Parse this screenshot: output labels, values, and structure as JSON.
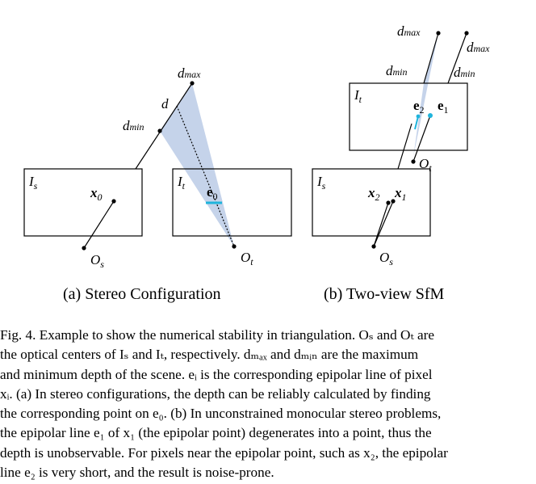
{
  "panel_a": {
    "caption": "(a) Stereo Configuration",
    "labels": {
      "d_max": "d",
      "d_max_sub": "max",
      "d": "d",
      "d_min": "d",
      "d_min_sub": "min",
      "I_s": "I",
      "I_s_sub": "s",
      "I_t": "I",
      "I_t_sub": "t",
      "x_0": "x",
      "x_0_sub": "0",
      "e_0": "e",
      "e_0_sub": "0",
      "O_s": "O",
      "O_s_sub": "s",
      "O_t": "O",
      "O_t_sub": "t"
    }
  },
  "panel_b": {
    "caption": "(b) Two-view SfM",
    "labels": {
      "d_max_1": "d",
      "d_max_1_sub": "max",
      "d_max_2": "d",
      "d_max_2_sub": "max",
      "d_min_1": "d",
      "d_min_1_sub": "min",
      "d_min_2": "d",
      "d_min_2_sub": "min",
      "I_t": "I",
      "I_t_sub": "t",
      "e_2": "e",
      "e_2_sub": "2",
      "e_1": "e",
      "e_1_sub": "1",
      "O_t": "O",
      "O_t_sub": "t",
      "I_s": "I",
      "I_s_sub": "s",
      "x_2": "x",
      "x_2_sub": "2",
      "x_1": "x",
      "x_1_sub": "1",
      "O_s": "O",
      "O_s_sub": "s"
    }
  },
  "caption_lines": [
    "Fig. 4.     Example to show the numerical stability in triangulation. Oₛ and Oₜ are",
    "the optical centers of Iₛ and Iₜ, respectively. dₘₐₓ and dₘᵢₙ are the maximum",
    "and minimum depth of the scene. eᵢ is the corresponding epipolar line of pixel",
    "xᵢ. (a) In stereo configurations, the depth can be reliably calculated by finding",
    "the corresponding point on e₀. (b) In unconstrained monocular stereo problems,",
    "the epipolar line e₁ of x₁ (the epipolar point) degenerates into a point, thus the",
    "depth is unobservable. For pixels near the epipolar point, such as x₂, the epipolar",
    "line e₂ is very short, and the result is noise-prone."
  ],
  "colors": {
    "cone_fill": "#c5d3ea",
    "epipolar_cyan": "#1fb4dc",
    "stroke": "#000000"
  }
}
